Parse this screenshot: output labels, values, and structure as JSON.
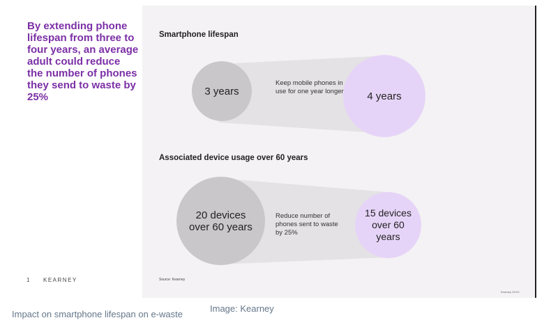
{
  "slide": {
    "headline": "By extending phone lifespan from three to four years, an average adult could reduce the number of phones they send to waste by 25%",
    "page_number": "1",
    "brand": "KEARNEY",
    "source": "Source: Kearney",
    "corner_mark": "Kearney XXXX"
  },
  "section1": {
    "title": "Smartphone lifespan",
    "from_label": "3 years",
    "to_label": "4 years",
    "note": "Keep mobile phones in use for one year longer"
  },
  "section2": {
    "title": "Associated device usage over 60 years",
    "from_label": "20 devices over 60 years",
    "to_label": "15 devices over 60 years",
    "note": "Reduce number of phones sent to waste by 25%"
  },
  "colors": {
    "headline": "#7b2fa6",
    "grey_circle": "#c9c7c9",
    "purple_circle": "#e6d4f8",
    "panel_bg": "#f4f2f4",
    "caption": "#65778a"
  },
  "caption": "Impact on smartphone lifespan on e-waste",
  "credit": "Image: Kearney"
}
